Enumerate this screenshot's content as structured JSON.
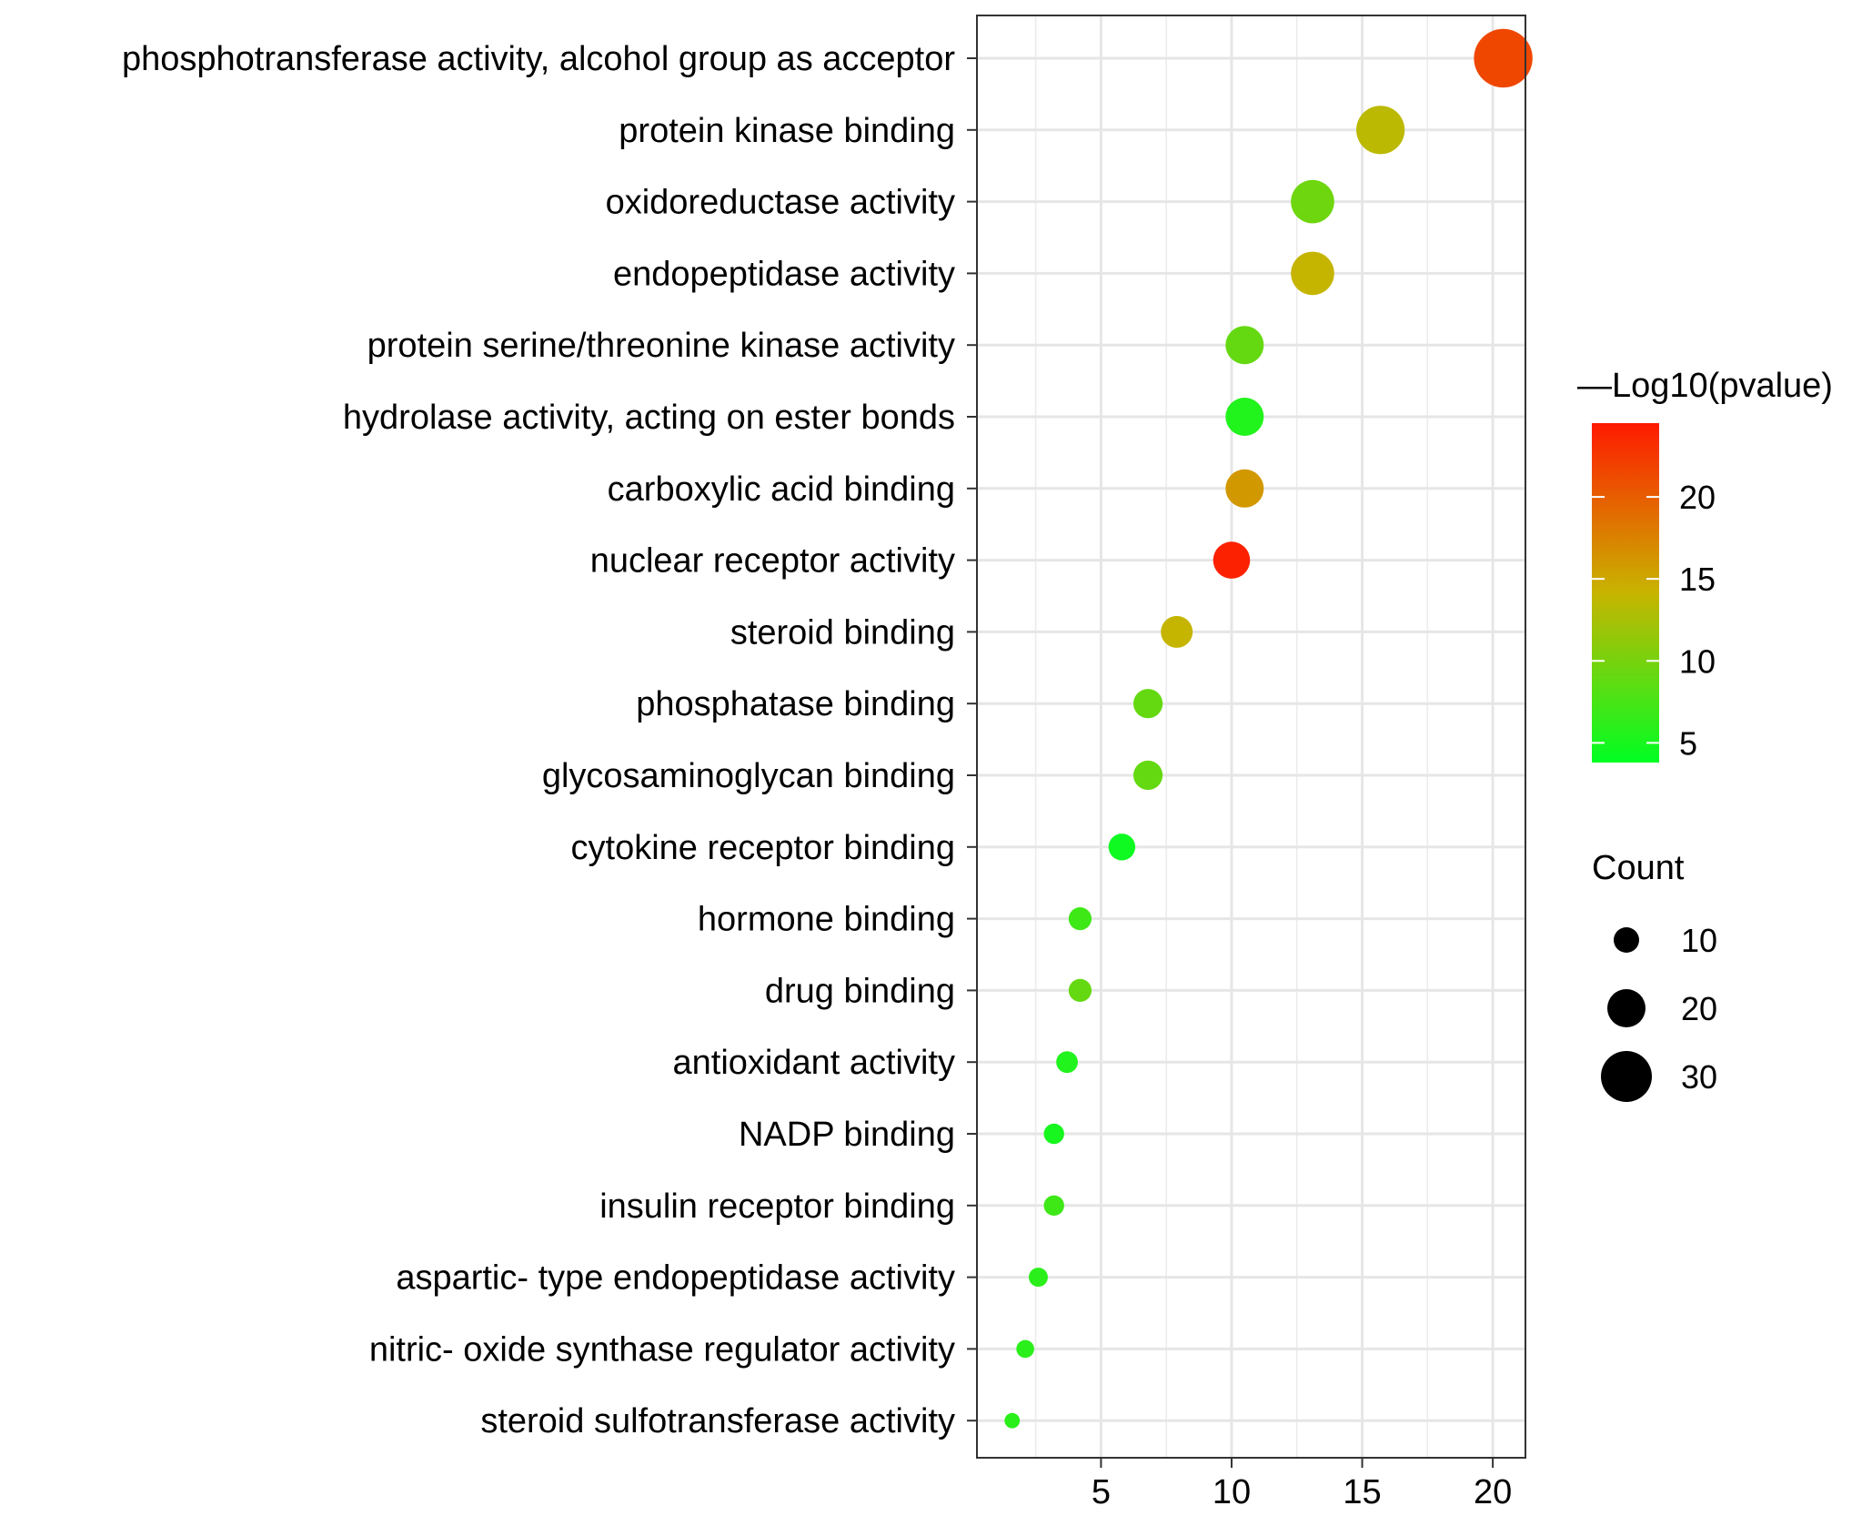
{
  "chart_data": {
    "type": "scatter",
    "title": "",
    "xlabel": "",
    "ylabel": "",
    "xlim": [
      0.25,
      21.25
    ],
    "xticks": [
      5,
      10,
      15,
      20
    ],
    "grid": true,
    "categories": [
      "phosphotransferase activity, alcohol group as acceptor",
      "protein kinase binding",
      "oxidoreductase activity",
      "endopeptidase activity",
      "protein serine/threonine kinase activity",
      "hydrolase activity, acting on ester bonds",
      "carboxylic acid binding",
      "nuclear receptor activity",
      "steroid binding",
      "phosphatase binding",
      "glycosaminoglycan binding",
      "cytokine receptor binding",
      "hormone binding",
      "drug binding",
      "antioxidant activity",
      "NADP binding",
      "insulin receptor binding",
      "aspartic- type endopeptidase activity",
      "nitric- oxide synthase regulator activity",
      "steroid sulfotransferase activity"
    ],
    "x": [
      20.4,
      15.7,
      13.1,
      13.1,
      10.5,
      10.5,
      10.5,
      10.0,
      7.9,
      6.8,
      6.8,
      5.8,
      4.2,
      4.2,
      3.7,
      3.2,
      3.2,
      2.6,
      2.1,
      1.6
    ],
    "count": [
      36,
      28,
      24,
      24,
      20,
      20,
      20,
      19,
      15,
      13,
      13,
      11,
      8,
      8,
      7,
      6,
      6,
      5,
      4,
      2
    ],
    "neg_log10_pvalue": [
      21.5,
      13.5,
      9.5,
      14.0,
      9.0,
      5.5,
      16.0,
      24.0,
      14.0,
      9.0,
      9.0,
      4.5,
      7.0,
      9.0,
      5.5,
      5.0,
      7.0,
      6.0,
      6.0,
      6.0
    ],
    "color_legend": {
      "title": "—Log10(pvalue)",
      "min": 3.8,
      "max": 24.5,
      "ticks": [
        5,
        10,
        15,
        20
      ],
      "low_color": "#00ff22",
      "mid_color": "#c8b400",
      "high_color": "#ff1a00"
    },
    "size_legend": {
      "title": "Count",
      "values": [
        10,
        20,
        30
      ]
    }
  }
}
